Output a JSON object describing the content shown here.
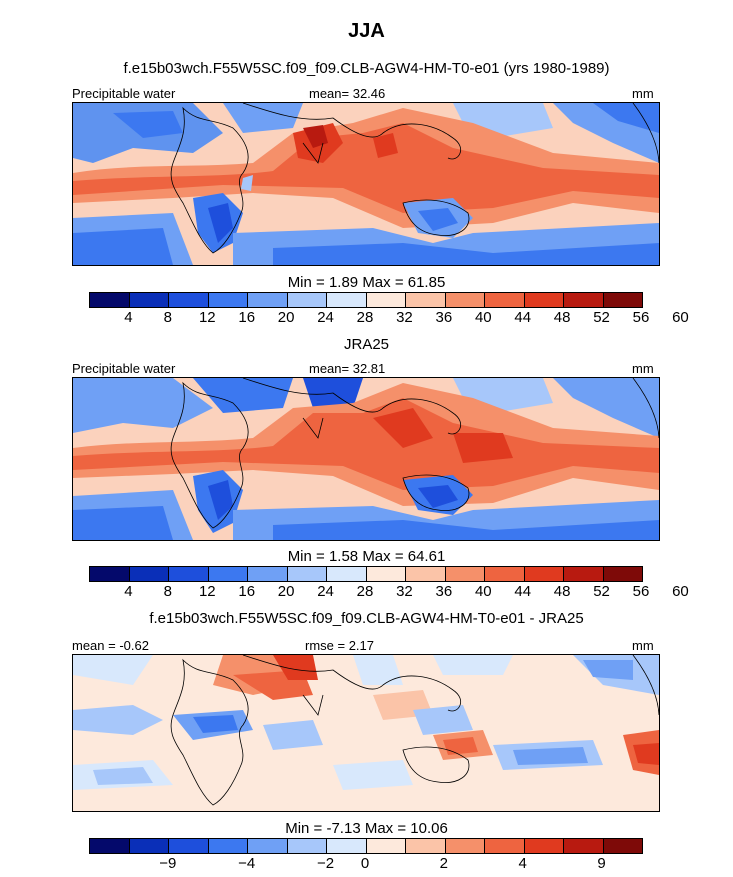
{
  "page_title": "JJA",
  "panel1": {
    "title": "f.e15b03wch.F55W5SC.f09_f09.CLB-AGW4-HM-T0-e01 (yrs 1980-1989)",
    "left_label": "Precipitable water",
    "center_label": "mean=  32.46",
    "right_label": "mm",
    "stats": "Min =    1.89  Max =   61.85"
  },
  "panel2": {
    "title": "JRA25",
    "left_label": "Precipitable water",
    "center_label": "mean=  32.81",
    "right_label": "mm",
    "stats": "Min =    1.58  Max =   64.61"
  },
  "panel3": {
    "title": "f.e15b03wch.F55W5SC.f09_f09.CLB-AGW4-HM-T0-e01 - JRA25",
    "left_label": "mean =  -0.62",
    "center_label": "rmse =    2.17",
    "right_label": "mm",
    "stats": "Min =   -7.13  Max =   10.06"
  },
  "colorbar_main": {
    "colors": [
      "#04096b",
      "#0a2fb8",
      "#1e4fdc",
      "#3c78f0",
      "#6fa0f5",
      "#a7c7fa",
      "#d8e8fc",
      "#fde9dc",
      "#fbc4a8",
      "#f5906a",
      "#ee6440",
      "#e03a1f",
      "#b81a10",
      "#7e0a08"
    ],
    "ticks": [
      "4",
      "8",
      "12",
      "16",
      "20",
      "24",
      "28",
      "32",
      "36",
      "40",
      "44",
      "48",
      "52",
      "56",
      "60"
    ]
  },
  "colorbar_diff": {
    "colors": [
      "#04096b",
      "#0a2fb8",
      "#1e4fdc",
      "#3c78f0",
      "#6fa0f5",
      "#a7c7fa",
      "#d8e8fc",
      "#fde9dc",
      "#fbc4a8",
      "#f5906a",
      "#ee6440",
      "#e03a1f",
      "#b81a10",
      "#7e0a08"
    ],
    "ticks": [
      "−9",
      "−4",
      "−2",
      "0",
      "2",
      "4",
      "9"
    ]
  }
}
